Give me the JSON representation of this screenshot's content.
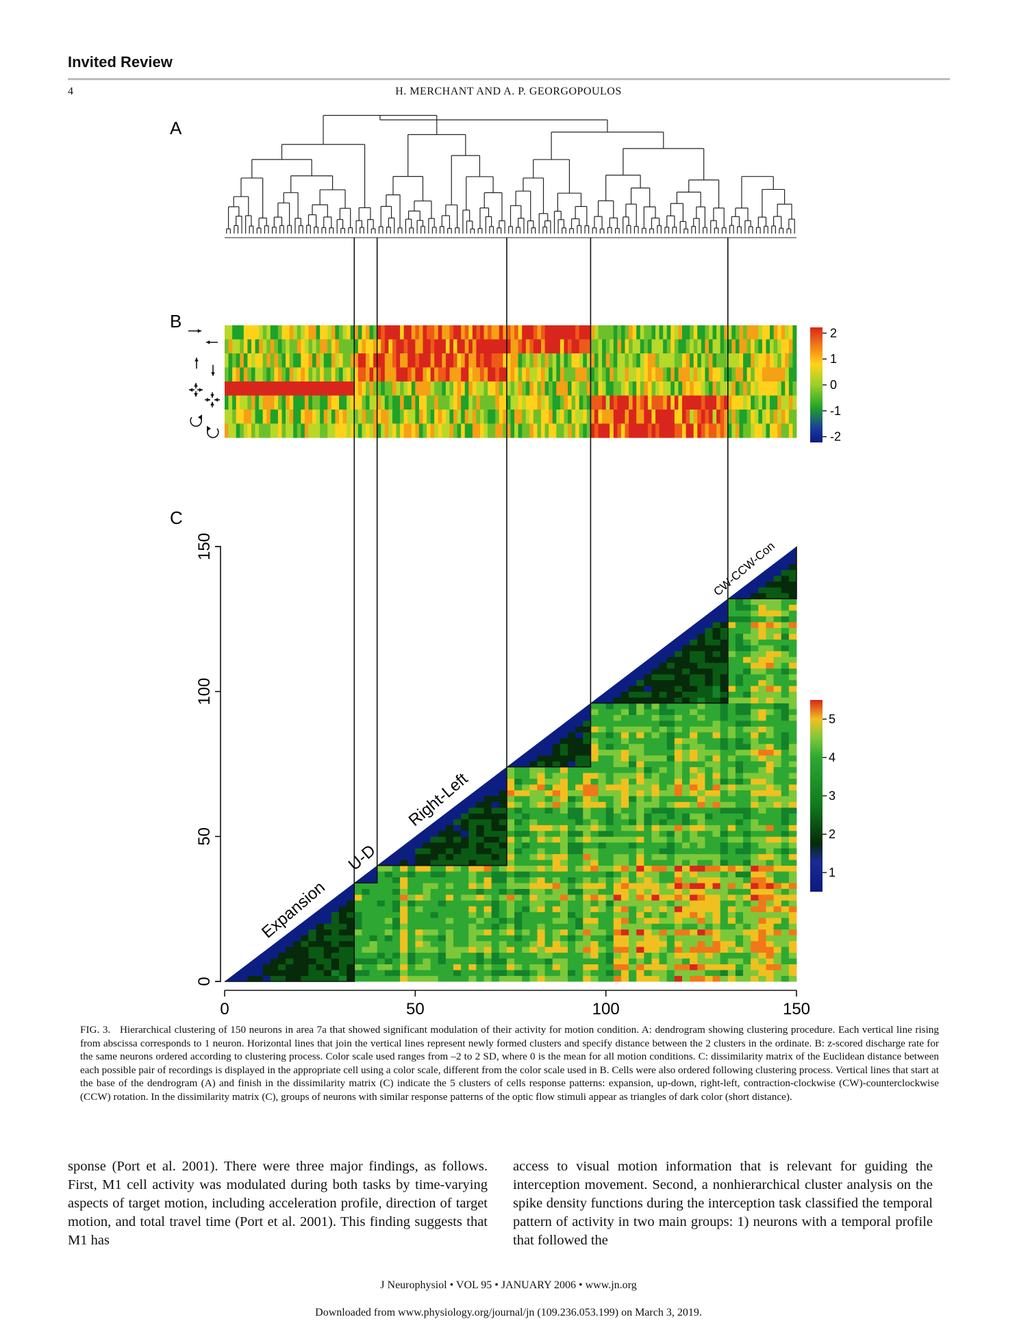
{
  "header": {
    "section_label": "Invited Review",
    "page_number": "4",
    "running_head": "H. MERCHANT AND A. P. GEORGOPOULOS"
  },
  "figure": {
    "panel_labels": [
      "A",
      "B",
      "C"
    ],
    "n_neurons": 150,
    "panel_b": {
      "row_icons": [
        "right-arrow-icon",
        "left-arrow-icon",
        "up-arrow-icon",
        "down-arrow-icon",
        "expansion-icon",
        "contraction-icon",
        "clockwise-icon",
        "counterclockwise-icon"
      ],
      "colorbar_ticks": [
        "2",
        "1",
        "0",
        "-1",
        "-2"
      ],
      "colorbar_range": [
        -2,
        2
      ],
      "colors": [
        "#0a1a80",
        "#1fa22a",
        "#ffd21a",
        "#d9261c"
      ]
    },
    "panel_c": {
      "x_ticks": [
        "0",
        "50",
        "100",
        "150"
      ],
      "y_ticks": [
        "0",
        "50",
        "100",
        "150"
      ],
      "axis_range": [
        0,
        150
      ],
      "colorbar_ticks": [
        "5",
        "4",
        "3",
        "2",
        "1"
      ],
      "colorbar_range": [
        0.5,
        5.5
      ],
      "cluster_labels": [
        "Expansion",
        "U-D",
        "Right-Left",
        "CW-CCW-Con"
      ],
      "cluster_boundaries": [
        34,
        40,
        74,
        96,
        132,
        150
      ]
    }
  },
  "caption": {
    "fig_no": "FIG. 3.",
    "text": "Hierarchical clustering of 150 neurons in area 7a that showed significant modulation of their activity for motion condition. A: dendrogram showing clustering procedure. Each vertical line rising from abscissa corresponds to 1 neuron. Horizontal lines that join the vertical lines represent newly formed clusters and specify distance between the 2 clusters in the ordinate. B: z-scored discharge rate for the same neurons ordered according to clustering process. Color scale used ranges from –2 to 2 SD, where 0 is the mean for all motion conditions. C: dissimilarity matrix of the Euclidean distance between each possible pair of recordings is displayed in the appropriate cell using a color scale, different from the color scale used in B. Cells were also ordered following clustering process. Vertical lines that start at the base of the dendrogram (A) and finish in the dissimilarity matrix (C) indicate the 5 clusters of cells response patterns: expansion, up-down, right-left, contraction-clockwise (CW)-counterclockwise (CCW) rotation. In the dissimilarity matrix (C), groups of neurons with similar response patterns of the optic flow stimuli appear as triangles of dark color (short distance)."
  },
  "body": {
    "left_column": "sponse (Port et al. 2001). There were three major findings, as follows. First, M1 cell activity was modulated during both tasks by time-varying aspects of target motion, including acceleration profile, direction of target motion, and total travel time (Port et al. 2001). This finding suggests that M1 has",
    "right_column": "access to visual motion information that is relevant for guiding the interception movement. Second, a nonhierarchical cluster analysis on the spike density functions during the interception task classified the temporal pattern of activity in two main groups: 1) neurons with a temporal profile that followed the"
  },
  "footer": {
    "journal": "J Neurophysiol • VOL 95 • JANUARY 2006 • www.jn.org",
    "download_note": "Downloaded from www.physiology.org/journal/jn (109.236.053.199) on March 3, 2019."
  }
}
